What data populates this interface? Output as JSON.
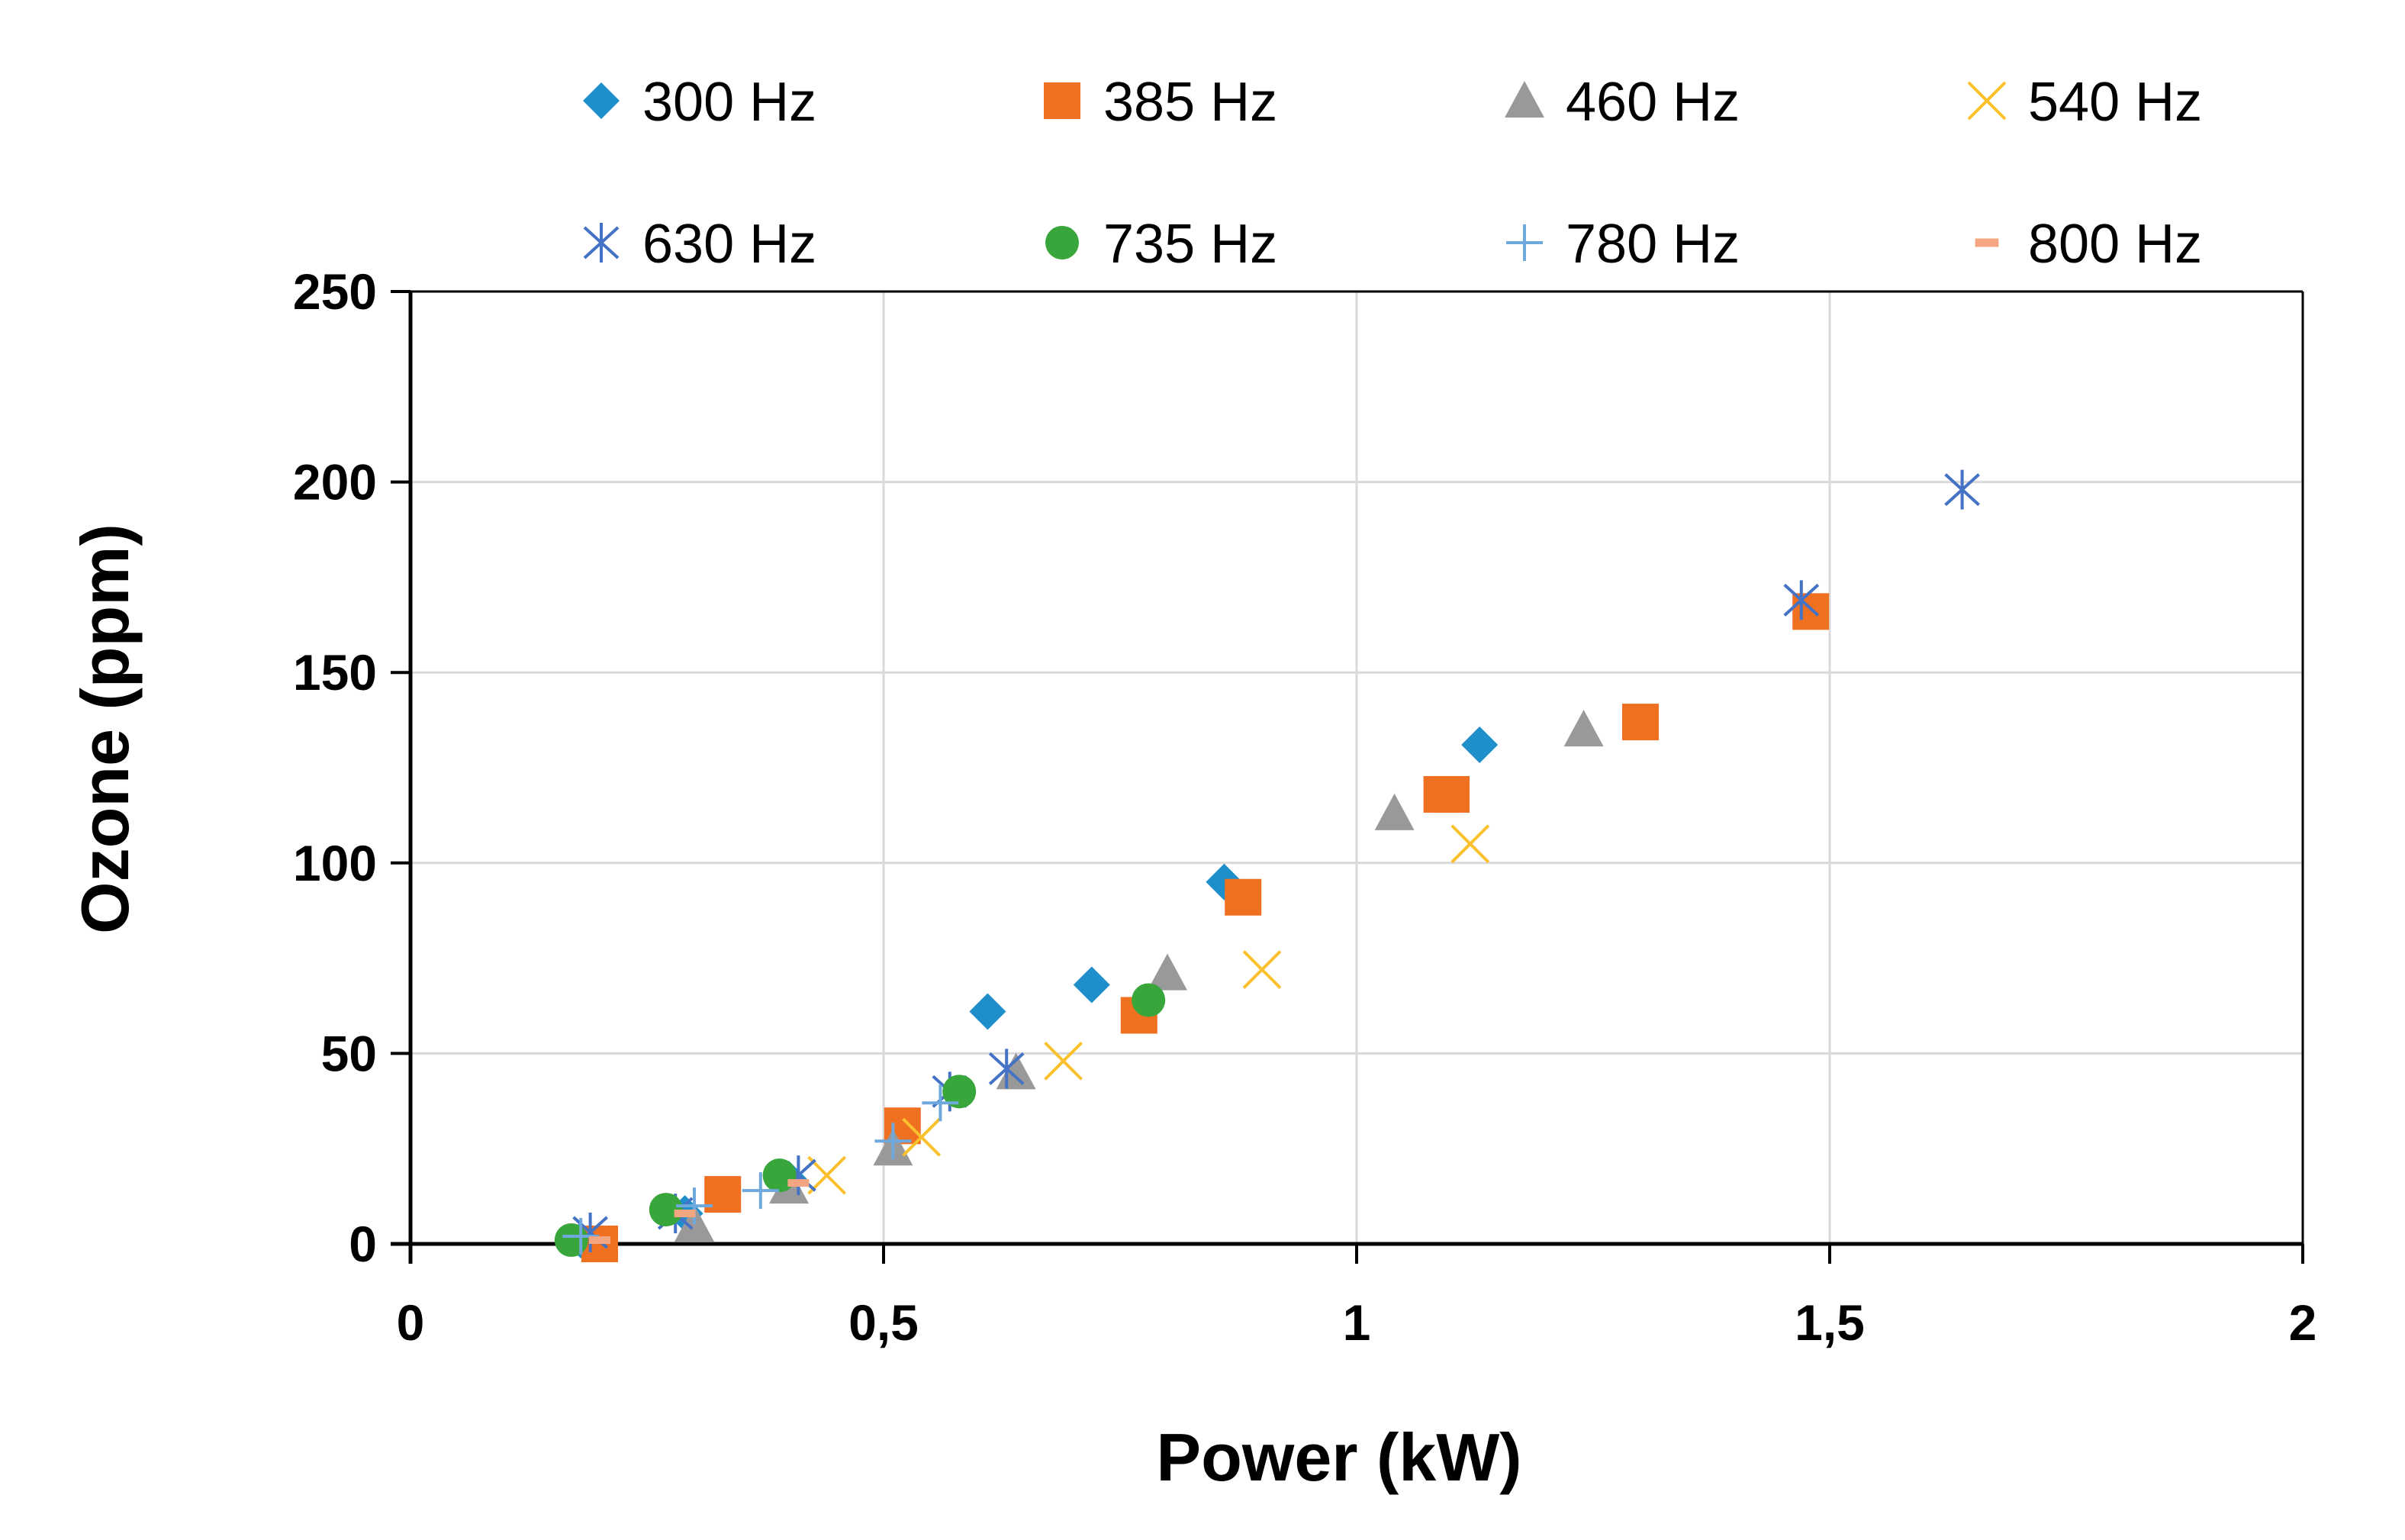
{
  "chart_data": {
    "type": "scatter",
    "title": "",
    "xlabel": "Power (kW)",
    "ylabel": "Ozone (ppm)",
    "xlim": [
      0,
      2
    ],
    "ylim": [
      0,
      250
    ],
    "xticks": [
      0,
      0.5,
      1,
      1.5,
      2
    ],
    "xtick_labels": [
      "0",
      "0,5",
      "1",
      "1,5",
      "2"
    ],
    "yticks": [
      0,
      50,
      100,
      150,
      200,
      250
    ],
    "ytick_labels": [
      "0",
      "50",
      "100",
      "150",
      "200",
      "250"
    ],
    "grid": true,
    "legend_position": "top",
    "series": [
      {
        "name": "300 Hz",
        "marker": "diamond",
        "color": "#1f8fcb",
        "x": [
          0.18,
          0.29,
          0.4,
          0.61,
          0.72,
          0.86,
          1.13
        ],
        "y": [
          1,
          8,
          17,
          61,
          68,
          95,
          131
        ]
      },
      {
        "name": "385 Hz",
        "marker": "square",
        "color": "#f07022",
        "x": [
          0.2,
          0.33,
          0.52,
          0.77,
          0.88,
          1.09,
          1.1,
          1.3,
          1.48
        ],
        "y": [
          0,
          13,
          31,
          60,
          91,
          118,
          118,
          137,
          166
        ]
      },
      {
        "name": "460 Hz",
        "marker": "triangle",
        "color": "#999999",
        "x": [
          0.3,
          0.4,
          0.51,
          0.64,
          0.8,
          1.04,
          1.24
        ],
        "y": [
          5,
          15,
          25,
          45,
          71,
          113,
          135
        ]
      },
      {
        "name": "540 Hz",
        "marker": "x",
        "color": "#fbc02d",
        "x": [
          0.44,
          0.54,
          0.69,
          0.9,
          1.12
        ],
        "y": [
          18,
          28,
          48,
          72,
          105
        ]
      },
      {
        "name": "630 Hz",
        "marker": "asterisk",
        "color": "#4472c4",
        "x": [
          0.19,
          0.28,
          0.41,
          0.57,
          0.63,
          1.47,
          1.64
        ],
        "y": [
          3,
          8,
          18,
          40,
          46,
          169,
          198
        ]
      },
      {
        "name": "735 Hz",
        "marker": "circle",
        "color": "#38a63a",
        "x": [
          0.17,
          0.27,
          0.39,
          0.58,
          0.78
        ],
        "y": [
          1,
          9,
          18,
          40,
          64
        ]
      },
      {
        "name": "780 Hz",
        "marker": "plus",
        "color": "#6fa8dc",
        "x": [
          0.18,
          0.3,
          0.37,
          0.51,
          0.56
        ],
        "y": [
          2,
          10,
          14,
          27,
          37
        ]
      },
      {
        "name": "800 Hz",
        "marker": "dash",
        "color": "#f4a582",
        "x": [
          0.2,
          0.29,
          0.41
        ],
        "y": [
          1,
          8,
          16
        ]
      }
    ]
  }
}
